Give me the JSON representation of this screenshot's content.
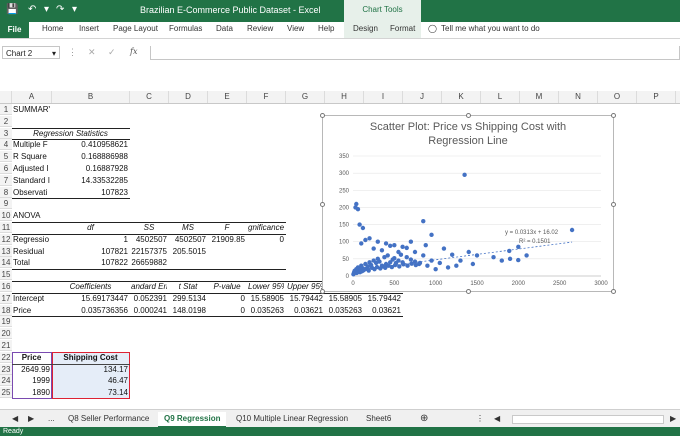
{
  "window": {
    "title": "Brazilian E-Commerce Public Dataset  -  Excel",
    "chart_tools": "Chart Tools"
  },
  "ribbon": {
    "tabs": [
      "File",
      "Home",
      "Insert",
      "Page Layout",
      "Formulas",
      "Data",
      "Review",
      "View",
      "Help",
      "Design",
      "Format"
    ],
    "tell_me": "Tell me what you want to do"
  },
  "formula_bar": {
    "name_box": "Chart 2",
    "fx": "fx"
  },
  "columns": [
    "A",
    "B",
    "C",
    "D",
    "E",
    "F",
    "G",
    "H",
    "I",
    "J",
    "K",
    "L",
    "M",
    "N",
    "O",
    "P"
  ],
  "rows": [
    "1",
    "2",
    "3",
    "4",
    "5",
    "6",
    "7",
    "8",
    "9",
    "10",
    "11",
    "12",
    "13",
    "14",
    "15",
    "16",
    "17",
    "18",
    "19",
    "20",
    "21",
    "22",
    "23",
    "24",
    "25"
  ],
  "cells": {
    "summary": "SUMMARY OUTPUT",
    "reg_stats": "Regression Statistics",
    "multiple_r_label": "Multiple F",
    "multiple_r": "0.410958621",
    "r_square_label": "R Square",
    "r_square": "0.168886988",
    "adj_label": "Adjusted I",
    "adj": "0.16887928",
    "se_label": "Standard I",
    "se": "14.33532285",
    "obs_label": "Observati",
    "obs": "107823",
    "anova": "ANOVA",
    "h_df": "df",
    "h_ss": "SS",
    "h_ms": "MS",
    "h_f": "F",
    "h_sigf": "gnificance F",
    "reg_label": "Regressio",
    "reg_df": "1",
    "reg_ss": "4502507",
    "reg_ms": "4502507",
    "reg_f": "21909.85",
    "reg_sigf": "0",
    "res_label": "Residual",
    "res_df": "107821",
    "res_ss": "22157375",
    "res_ms": "205.5015",
    "tot_label": "Total",
    "tot_df": "107822",
    "tot_ss": "26659882",
    "h_coef": "Coefficients",
    "h_stderr": "andard Err",
    "h_tstat": "t Stat",
    "h_pval": "P-value",
    "h_low95": "Lower 95%",
    "h_up95": "Upper 95%",
    "h_low950": "ower 95.0%",
    "h_up950": "pper 95.0%",
    "int_label": "Intercept",
    "int_coef": "15.69173447",
    "int_se": "0.052391",
    "int_t": "299.5134",
    "int_p": "0",
    "int_l95": "15.58905",
    "int_u95": "15.79442",
    "int_l950": "15.58905",
    "int_u950": "15.79442",
    "price_label": "Price",
    "price_coef": "0.035736356",
    "price_se": "0.000241",
    "price_t": "148.0198",
    "price_p": "0",
    "price_l95": "0.035263",
    "price_u95": "0.03621",
    "price_l950": "0.035263",
    "price_u950": "0.03621",
    "col_price": "Price",
    "col_ship": "Shipping Cost",
    "p1": "2649.99",
    "s1": "134.17",
    "p2": "1999",
    "s2": "46.47",
    "p3": "1890",
    "s3": "73.14"
  },
  "chart_data": {
    "type": "scatter",
    "title": "Scatter Plot: Price vs Shipping Cost with Regression Line",
    "xlim": [
      0,
      3000
    ],
    "ylim": [
      0,
      350
    ],
    "x_ticks": [
      "0",
      "500",
      "1000",
      "1500",
      "2000",
      "2500",
      "3000"
    ],
    "y_ticks": [
      "0",
      "50",
      "100",
      "150",
      "200",
      "250",
      "300",
      "350"
    ],
    "trendline_equation": "y = 0.0313x + 16.02",
    "trendline_r2": "R² = 0.1501",
    "trendline": {
      "slope": 0.0313,
      "intercept": 16.02
    },
    "point_color": "#4472c4",
    "points": [
      [
        20,
        15
      ],
      [
        40,
        20
      ],
      [
        60,
        25
      ],
      [
        80,
        18
      ],
      [
        100,
        30
      ],
      [
        120,
        22
      ],
      [
        150,
        35
      ],
      [
        180,
        28
      ],
      [
        200,
        40
      ],
      [
        220,
        32
      ],
      [
        250,
        45
      ],
      [
        280,
        38
      ],
      [
        300,
        50
      ],
      [
        320,
        42
      ],
      [
        350,
        30
      ],
      [
        380,
        55
      ],
      [
        400,
        35
      ],
      [
        420,
        60
      ],
      [
        450,
        40
      ],
      [
        480,
        48
      ],
      [
        500,
        52
      ],
      [
        520,
        38
      ],
      [
        550,
        45
      ],
      [
        580,
        62
      ],
      [
        600,
        40
      ],
      [
        650,
        55
      ],
      [
        700,
        48
      ],
      [
        750,
        42
      ],
      [
        800,
        35
      ],
      [
        850,
        60
      ],
      [
        900,
        30
      ],
      [
        950,
        45
      ],
      [
        1000,
        20
      ],
      [
        1050,
        38
      ],
      [
        1100,
        80
      ],
      [
        1150,
        25
      ],
      [
        1200,
        62
      ],
      [
        1250,
        30
      ],
      [
        1300,
        45
      ],
      [
        1350,
        295
      ],
      [
        1400,
        70
      ],
      [
        1450,
        35
      ],
      [
        1500,
        60
      ],
      [
        1700,
        55
      ],
      [
        1800,
        45
      ],
      [
        1900,
        50
      ],
      [
        2000,
        85
      ],
      [
        2100,
        60
      ],
      [
        2649.99,
        134.17
      ],
      [
        1999,
        46.47
      ],
      [
        1890,
        73.14
      ],
      [
        850,
        160
      ],
      [
        880,
        90
      ],
      [
        950,
        120
      ],
      [
        30,
        200
      ],
      [
        40,
        210
      ],
      [
        60,
        195
      ],
      [
        80,
        150
      ],
      [
        120,
        140
      ],
      [
        200,
        110
      ],
      [
        300,
        100
      ],
      [
        400,
        95
      ],
      [
        500,
        90
      ],
      [
        600,
        85
      ],
      [
        700,
        100
      ],
      [
        750,
        70
      ],
      [
        100,
        95
      ],
      [
        150,
        105
      ],
      [
        250,
        80
      ],
      [
        350,
        75
      ],
      [
        450,
        88
      ],
      [
        550,
        70
      ],
      [
        650,
        82
      ],
      [
        5,
        5
      ],
      [
        10,
        8
      ],
      [
        15,
        12
      ],
      [
        25,
        10
      ],
      [
        35,
        14
      ],
      [
        45,
        9
      ],
      [
        55,
        18
      ],
      [
        65,
        12
      ],
      [
        75,
        16
      ],
      [
        85,
        11
      ],
      [
        95,
        19
      ],
      [
        110,
        14
      ],
      [
        130,
        17
      ],
      [
        160,
        21
      ],
      [
        190,
        16
      ],
      [
        230,
        24
      ],
      [
        260,
        20
      ],
      [
        290,
        26
      ],
      [
        330,
        22
      ],
      [
        360,
        28
      ],
      [
        390,
        24
      ],
      [
        430,
        30
      ],
      [
        470,
        26
      ],
      [
        510,
        32
      ],
      [
        560,
        28
      ],
      [
        610,
        34
      ],
      [
        660,
        30
      ],
      [
        710,
        36
      ],
      [
        760,
        32
      ],
      [
        810,
        38
      ]
    ]
  },
  "sheets": {
    "nav_more": "...",
    "tabs": [
      "Q8 Seller Performance",
      "Q9 Regression",
      "Q10 Multiple Linear Regression",
      "Sheet6"
    ],
    "active": "Q9 Regression"
  },
  "status": "Ready"
}
